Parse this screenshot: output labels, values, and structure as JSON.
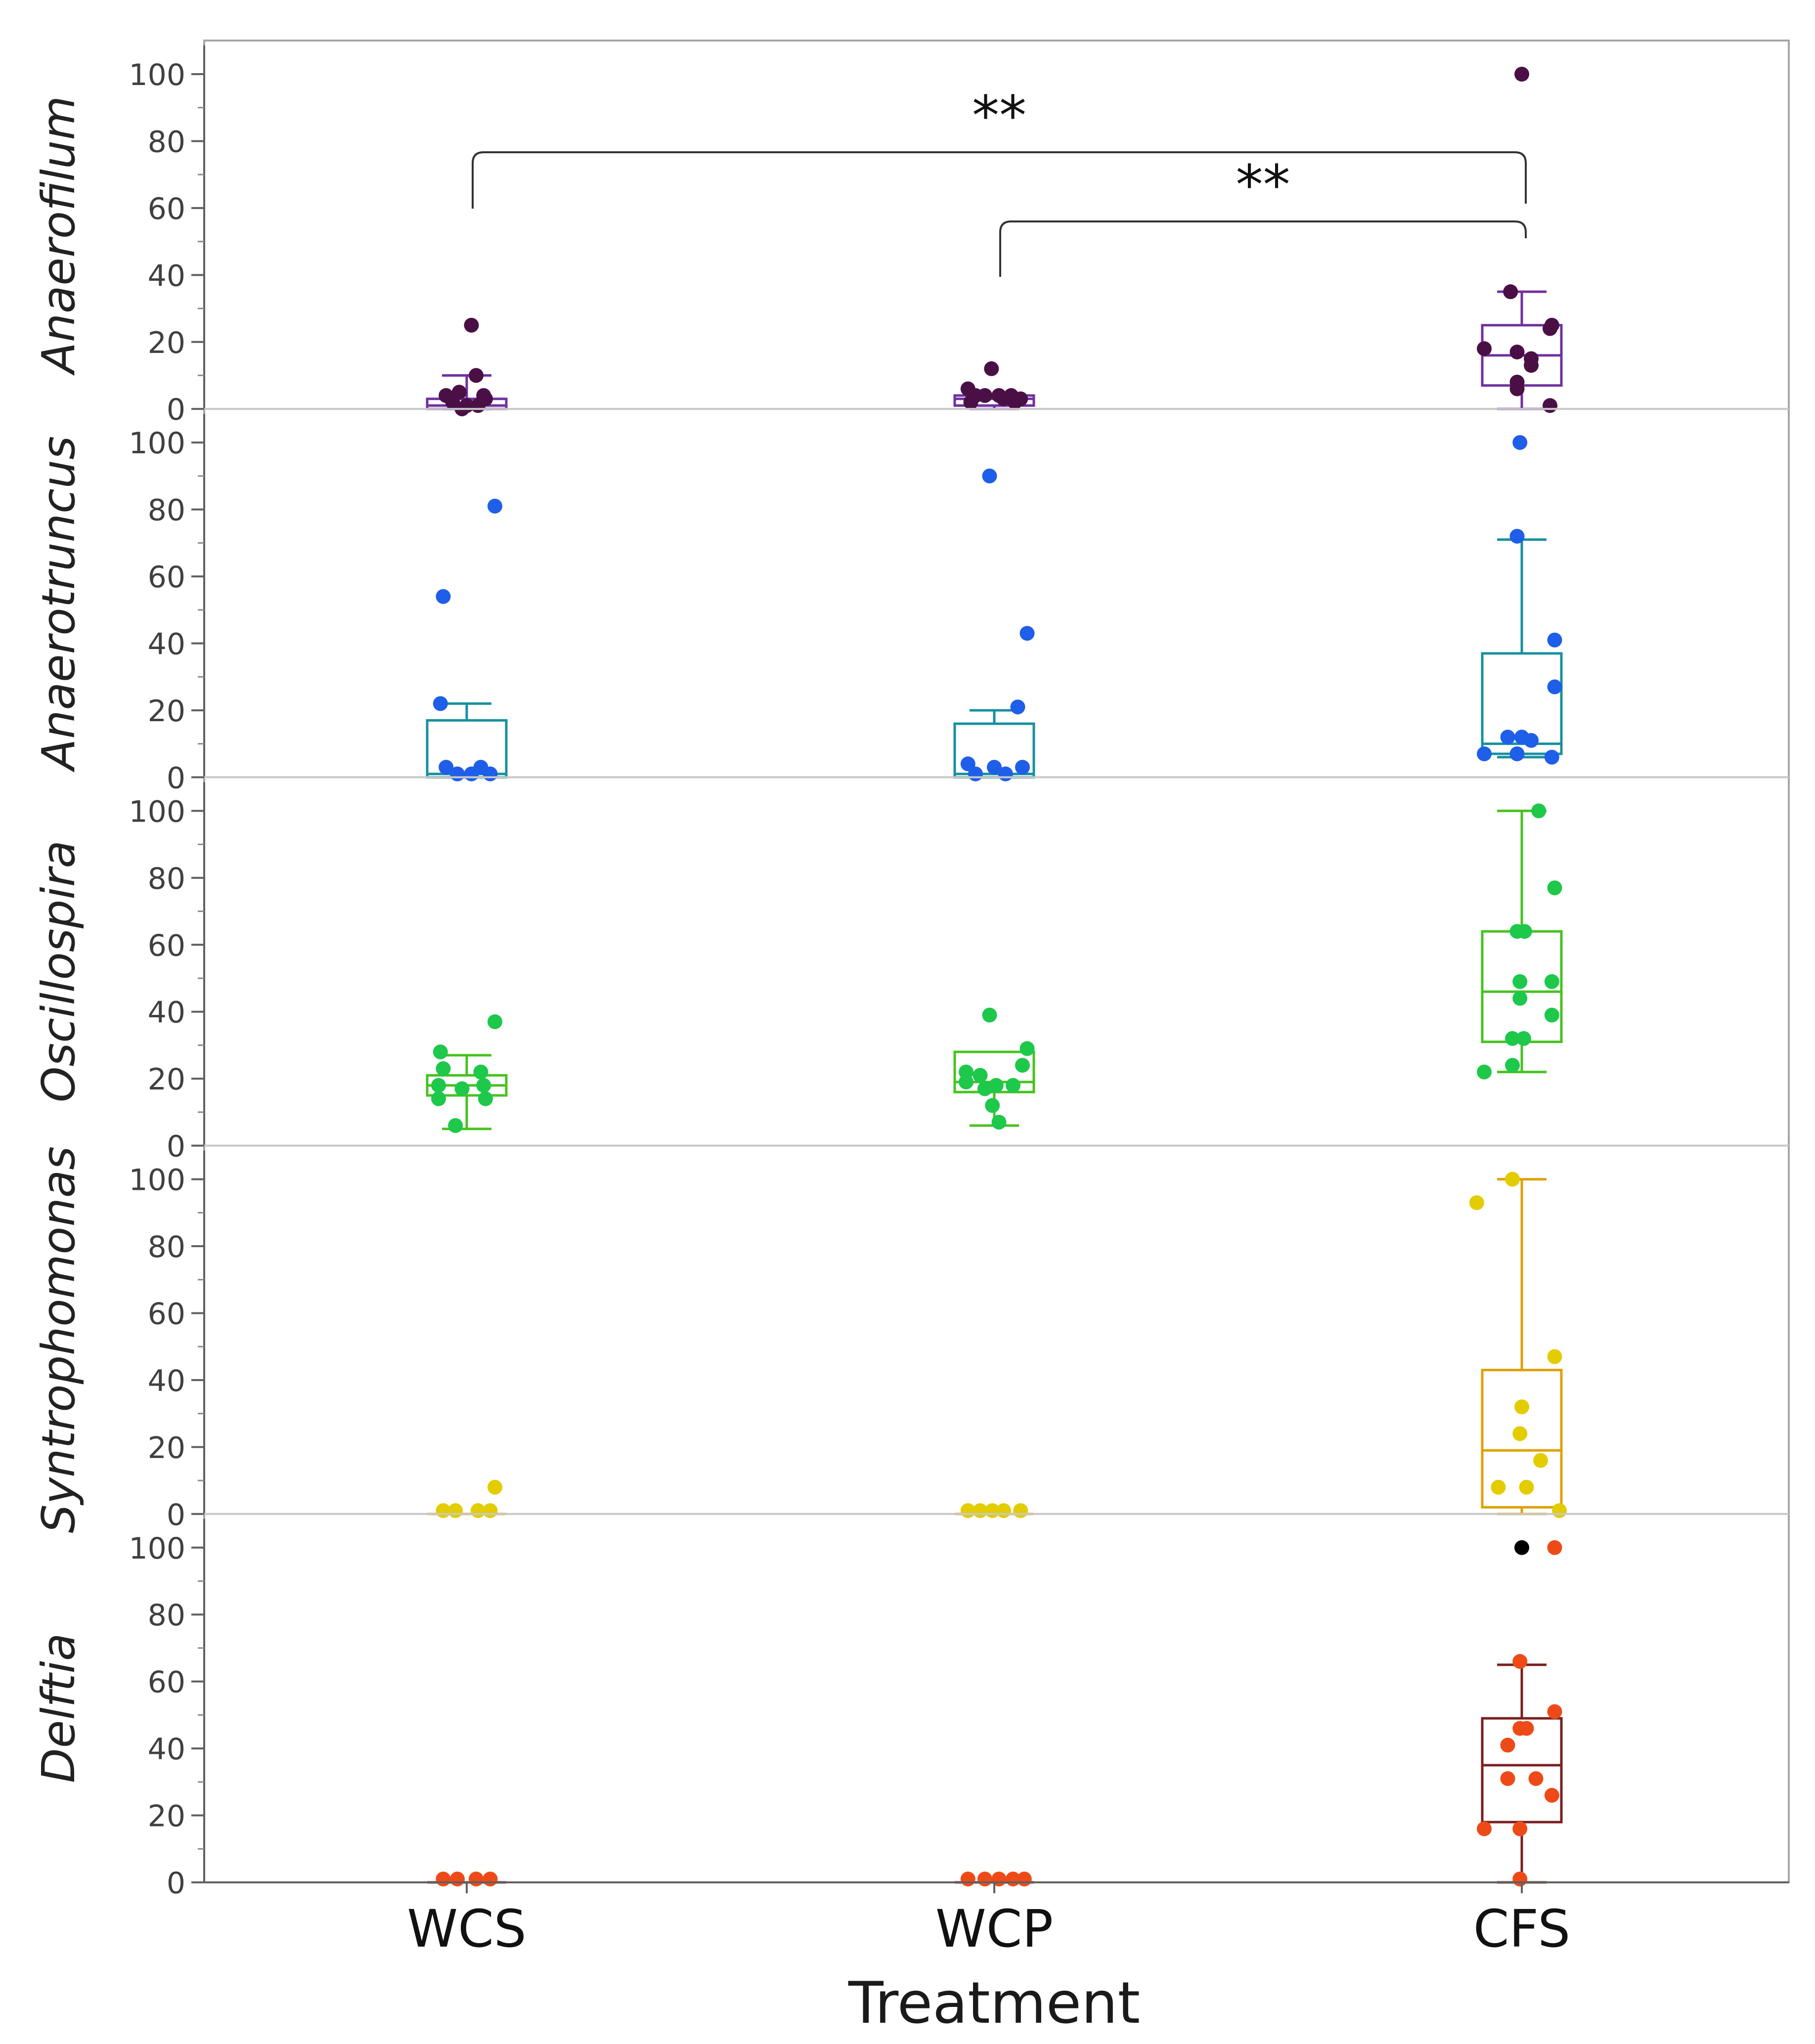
{
  "chart_data": {
    "type": "box-scatter",
    "xlabel": "Treatment",
    "categories": [
      "WCS",
      "WCP",
      "CFS"
    ],
    "yticks": [
      0,
      20,
      40,
      60,
      80,
      100
    ],
    "ylim": [
      0,
      100
    ],
    "panels": [
      {
        "ylabel": "Anaerofilum",
        "box_color": "#7030a0",
        "point_color": "#4a1045",
        "groups": [
          {
            "category": "WCS",
            "box": {
              "min": 0,
              "q1": 0,
              "median": 1,
              "q3": 3,
              "max": 10
            },
            "points": [
              {
                "dx": 0.05,
                "y": 25
              },
              {
                "dx": 0.1,
                "y": 10
              },
              {
                "dx": -0.22,
                "y": 4
              },
              {
                "dx": -0.08,
                "y": 5
              },
              {
                "dx": 0.18,
                "y": 4
              },
              {
                "dx": 0.2,
                "y": 3
              },
              {
                "dx": -0.15,
                "y": 2
              },
              {
                "dx": 0.0,
                "y": 1
              },
              {
                "dx": 0.12,
                "y": 1
              },
              {
                "dx": -0.05,
                "y": 0
              }
            ]
          },
          {
            "category": "WCP",
            "box": {
              "min": 0,
              "q1": 1,
              "median": 3,
              "q3": 4,
              "max": 4
            },
            "points": [
              {
                "dx": -0.03,
                "y": 12
              },
              {
                "dx": -0.28,
                "y": 6
              },
              {
                "dx": -0.2,
                "y": 4
              },
              {
                "dx": -0.1,
                "y": 4
              },
              {
                "dx": 0.05,
                "y": 4
              },
              {
                "dx": 0.18,
                "y": 4
              },
              {
                "dx": 0.28,
                "y": 3
              },
              {
                "dx": -0.25,
                "y": 2
              },
              {
                "dx": 0.1,
                "y": 3
              },
              {
                "dx": 0.22,
                "y": 2
              }
            ]
          },
          {
            "category": "CFS",
            "box": {
              "min": 0,
              "q1": 7,
              "median": 16,
              "q3": 25,
              "max": 35
            },
            "points": [
              {
                "dx": 0.0,
                "y": 100
              },
              {
                "dx": -0.12,
                "y": 35
              },
              {
                "dx": 0.32,
                "y": 25
              },
              {
                "dx": 0.3,
                "y": 24
              },
              {
                "dx": -0.4,
                "y": 18
              },
              {
                "dx": -0.05,
                "y": 17
              },
              {
                "dx": 0.1,
                "y": 15
              },
              {
                "dx": 0.1,
                "y": 13
              },
              {
                "dx": -0.05,
                "y": 8
              },
              {
                "dx": -0.05,
                "y": 6
              },
              {
                "dx": 0.3,
                "y": 1
              }
            ]
          }
        ],
        "significance": [
          {
            "from": "WCS",
            "to": "CFS",
            "label": "**"
          },
          {
            "from": "WCP",
            "to": "CFS",
            "label": "**"
          }
        ]
      },
      {
        "ylabel": "Anaerotruncus",
        "box_color": "#17909f",
        "point_color": "#1f5ee8",
        "groups": [
          {
            "category": "WCS",
            "box": {
              "min": 0,
              "q1": 0,
              "median": 1,
              "q3": 17,
              "max": 22
            },
            "points": [
              {
                "dx": 0.3,
                "y": 81
              },
              {
                "dx": -0.25,
                "y": 54
              },
              {
                "dx": -0.28,
                "y": 22
              },
              {
                "dx": -0.22,
                "y": 3
              },
              {
                "dx": 0.15,
                "y": 3
              },
              {
                "dx": -0.1,
                "y": 1
              },
              {
                "dx": 0.05,
                "y": 1
              },
              {
                "dx": 0.25,
                "y": 1
              }
            ]
          },
          {
            "category": "WCP",
            "box": {
              "min": 0,
              "q1": 0,
              "median": 1,
              "q3": 16,
              "max": 20
            },
            "points": [
              {
                "dx": -0.05,
                "y": 90
              },
              {
                "dx": 0.35,
                "y": 43
              },
              {
                "dx": 0.25,
                "y": 21
              },
              {
                "dx": -0.28,
                "y": 4
              },
              {
                "dx": 0.0,
                "y": 3
              },
              {
                "dx": 0.3,
                "y": 3
              },
              {
                "dx": -0.2,
                "y": 1
              },
              {
                "dx": 0.12,
                "y": 1
              }
            ]
          },
          {
            "category": "CFS",
            "box": {
              "min": 6,
              "q1": 7,
              "median": 10,
              "q3": 37,
              "max": 71
            },
            "points": [
              {
                "dx": -0.02,
                "y": 100
              },
              {
                "dx": -0.05,
                "y": 72
              },
              {
                "dx": 0.35,
                "y": 41
              },
              {
                "dx": 0.35,
                "y": 27
              },
              {
                "dx": -0.15,
                "y": 12
              },
              {
                "dx": 0.0,
                "y": 12
              },
              {
                "dx": 0.1,
                "y": 11
              },
              {
                "dx": -0.4,
                "y": 7
              },
              {
                "dx": 0.32,
                "y": 6
              },
              {
                "dx": -0.05,
                "y": 7
              }
            ]
          }
        ]
      },
      {
        "ylabel": "Oscillospira",
        "box_color": "#47c21f",
        "point_color": "#1ec84a",
        "groups": [
          {
            "category": "WCS",
            "box": {
              "min": 5,
              "q1": 15,
              "median": 18,
              "q3": 21,
              "max": 27
            },
            "points": [
              {
                "dx": 0.3,
                "y": 37
              },
              {
                "dx": -0.28,
                "y": 28
              },
              {
                "dx": -0.25,
                "y": 23
              },
              {
                "dx": 0.15,
                "y": 22
              },
              {
                "dx": -0.3,
                "y": 18
              },
              {
                "dx": 0.18,
                "y": 18
              },
              {
                "dx": -0.05,
                "y": 17
              },
              {
                "dx": -0.3,
                "y": 14
              },
              {
                "dx": 0.2,
                "y": 14
              },
              {
                "dx": -0.12,
                "y": 6
              }
            ]
          },
          {
            "category": "WCP",
            "box": {
              "min": 6,
              "q1": 16,
              "median": 19,
              "q3": 28,
              "max": 28
            },
            "points": [
              {
                "dx": -0.05,
                "y": 39
              },
              {
                "dx": 0.35,
                "y": 29
              },
              {
                "dx": 0.3,
                "y": 24
              },
              {
                "dx": -0.3,
                "y": 22
              },
              {
                "dx": -0.15,
                "y": 21
              },
              {
                "dx": -0.3,
                "y": 19
              },
              {
                "dx": 0.02,
                "y": 18
              },
              {
                "dx": 0.2,
                "y": 18
              },
              {
                "dx": -0.1,
                "y": 17
              },
              {
                "dx": -0.02,
                "y": 12
              },
              {
                "dx": 0.05,
                "y": 7
              }
            ]
          },
          {
            "category": "CFS",
            "box": {
              "min": 22,
              "q1": 31,
              "median": 46,
              "q3": 64,
              "max": 100
            },
            "points": [
              {
                "dx": 0.18,
                "y": 100
              },
              {
                "dx": 0.35,
                "y": 77
              },
              {
                "dx": -0.05,
                "y": 64
              },
              {
                "dx": 0.03,
                "y": 64
              },
              {
                "dx": -0.02,
                "y": 49
              },
              {
                "dx": 0.32,
                "y": 49
              },
              {
                "dx": -0.02,
                "y": 44
              },
              {
                "dx": 0.32,
                "y": 39
              },
              {
                "dx": -0.1,
                "y": 32
              },
              {
                "dx": 0.02,
                "y": 32
              },
              {
                "dx": -0.4,
                "y": 22
              },
              {
                "dx": -0.1,
                "y": 24
              }
            ]
          }
        ]
      },
      {
        "ylabel": "Syntrophomonas",
        "box_color": "#e0a000",
        "point_color": "#e3cc00",
        "groups": [
          {
            "category": "WCS",
            "box": {
              "min": 0,
              "q1": 0,
              "median": 0,
              "q3": 0,
              "max": 0
            },
            "points": [
              {
                "dx": 0.3,
                "y": 8
              },
              {
                "dx": -0.25,
                "y": 1
              },
              {
                "dx": -0.12,
                "y": 1
              },
              {
                "dx": 0.12,
                "y": 1
              },
              {
                "dx": 0.25,
                "y": 1
              }
            ]
          },
          {
            "category": "WCP",
            "box": {
              "min": 0,
              "q1": 0,
              "median": 0,
              "q3": 0,
              "max": 0
            },
            "points": [
              {
                "dx": -0.28,
                "y": 1
              },
              {
                "dx": -0.15,
                "y": 1
              },
              {
                "dx": -0.02,
                "y": 1
              },
              {
                "dx": 0.1,
                "y": 1
              },
              {
                "dx": 0.28,
                "y": 1
              }
            ]
          },
          {
            "category": "CFS",
            "box": {
              "min": 0,
              "q1": 2,
              "median": 19,
              "q3": 43,
              "max": 100
            },
            "points": [
              {
                "dx": -0.1,
                "y": 100
              },
              {
                "dx": -0.48,
                "y": 93
              },
              {
                "dx": 0.35,
                "y": 47
              },
              {
                "dx": 0.0,
                "y": 32
              },
              {
                "dx": -0.02,
                "y": 24
              },
              {
                "dx": 0.2,
                "y": 16
              },
              {
                "dx": -0.25,
                "y": 8
              },
              {
                "dx": 0.05,
                "y": 8
              },
              {
                "dx": 0.4,
                "y": 1
              }
            ]
          }
        ]
      },
      {
        "ylabel": "Delftia",
        "box_color": "#7a1f1f",
        "point_color": "#ee4a18",
        "groups": [
          {
            "category": "WCS",
            "box": {
              "min": 0,
              "q1": 0,
              "median": 0,
              "q3": 0,
              "max": 0
            },
            "points": [
              {
                "dx": -0.25,
                "y": 1
              },
              {
                "dx": -0.1,
                "y": 1
              },
              {
                "dx": 0.1,
                "y": 1
              },
              {
                "dx": 0.25,
                "y": 1
              }
            ]
          },
          {
            "category": "WCP",
            "box": {
              "min": 0,
              "q1": 0,
              "median": 0,
              "q3": 0,
              "max": 0
            },
            "points": [
              {
                "dx": -0.28,
                "y": 1
              },
              {
                "dx": -0.1,
                "y": 1
              },
              {
                "dx": 0.05,
                "y": 1
              },
              {
                "dx": 0.2,
                "y": 1
              },
              {
                "dx": 0.32,
                "y": 1
              }
            ]
          },
          {
            "category": "CFS",
            "box": {
              "min": 0,
              "q1": 18,
              "median": 35,
              "q3": 49,
              "max": 65
            },
            "points": [
              {
                "dx": 0.0,
                "y": 100,
                "color": "#000000"
              },
              {
                "dx": 0.35,
                "y": 100
              },
              {
                "dx": -0.02,
                "y": 66
              },
              {
                "dx": 0.35,
                "y": 51
              },
              {
                "dx": -0.02,
                "y": 46
              },
              {
                "dx": 0.05,
                "y": 46
              },
              {
                "dx": -0.15,
                "y": 41
              },
              {
                "dx": -0.15,
                "y": 31
              },
              {
                "dx": 0.15,
                "y": 31
              },
              {
                "dx": 0.32,
                "y": 26
              },
              {
                "dx": -0.4,
                "y": 16
              },
              {
                "dx": -0.02,
                "y": 16
              },
              {
                "dx": -0.02,
                "y": 1
              }
            ]
          }
        ]
      }
    ]
  }
}
